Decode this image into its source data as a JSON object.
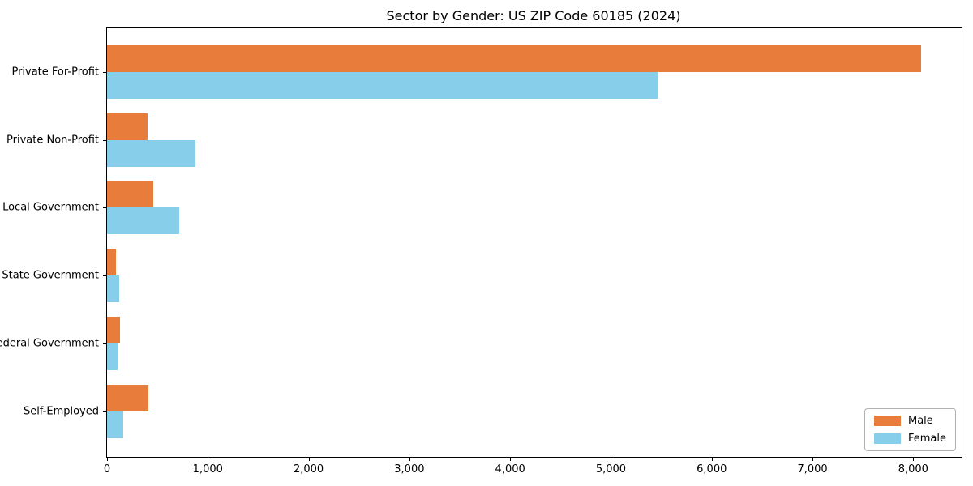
{
  "chart_data": {
    "type": "bar",
    "orientation": "horizontal",
    "title": "Sector by Gender: US ZIP Code 60185 (2024)",
    "categories": [
      "Private For-Profit",
      "Private Non-Profit",
      "Local Government",
      "State Government",
      "Federal Government",
      "Self-Employed"
    ],
    "series": [
      {
        "name": "Male",
        "color": "#E87D3B",
        "values": [
          8080,
          400,
          460,
          90,
          125,
          410
        ]
      },
      {
        "name": "Female",
        "color": "#87CEEB",
        "values": [
          5470,
          875,
          720,
          120,
          105,
          160
        ]
      }
    ],
    "xlabel": "",
    "ylabel": "",
    "xlim": [
      0,
      8480
    ],
    "x_tick_values": [
      0,
      1000,
      2000,
      3000,
      4000,
      5000,
      6000,
      7000,
      8000
    ],
    "x_tick_labels": [
      "0",
      "1,000",
      "2,000",
      "3,000",
      "4,000",
      "5,000",
      "6,000",
      "7,000",
      "8,000"
    ],
    "grid": false,
    "legend_position": "lower right",
    "colors": {
      "axis": "#000000",
      "legend_border": "#b0b0b0",
      "background": "#ffffff"
    }
  }
}
